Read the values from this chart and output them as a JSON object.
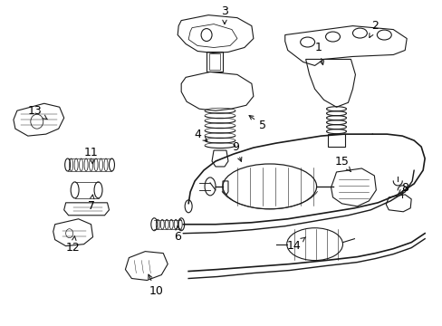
{
  "background_color": "#ffffff",
  "line_color": "#1a1a1a",
  "text_color": "#000000",
  "figsize": [
    4.89,
    3.6
  ],
  "dpi": 100,
  "parts_info": [
    [
      "1",
      358,
      75,
      352,
      52
    ],
    [
      "2",
      408,
      42,
      415,
      28
    ],
    [
      "3",
      248,
      30,
      248,
      12
    ],
    [
      "4",
      232,
      158,
      218,
      148
    ],
    [
      "5",
      272,
      125,
      290,
      138
    ],
    [
      "6",
      196,
      246,
      196,
      262
    ],
    [
      "7",
      102,
      214,
      100,
      228
    ],
    [
      "8",
      440,
      215,
      448,
      208
    ],
    [
      "9",
      268,
      182,
      260,
      162
    ],
    [
      "10",
      162,
      300,
      172,
      322
    ],
    [
      "11",
      102,
      182,
      100,
      168
    ],
    [
      "12",
      82,
      260,
      80,
      274
    ],
    [
      "13",
      52,
      132,
      38,
      122
    ],
    [
      "14",
      338,
      262,
      325,
      272
    ],
    [
      "15",
      390,
      192,
      378,
      178
    ]
  ]
}
